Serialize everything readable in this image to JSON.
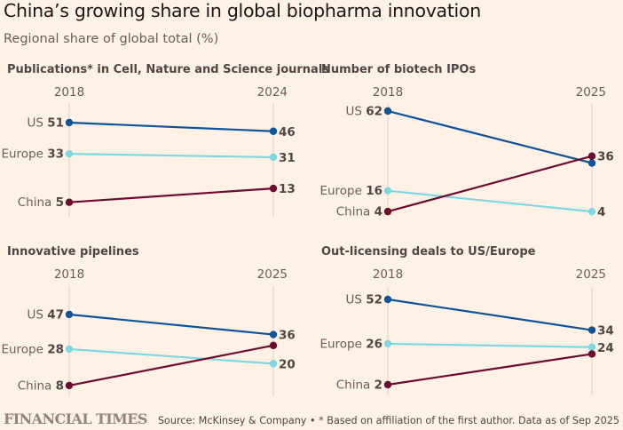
{
  "header": {
    "title": "China’s growing share in global biopharma innovation",
    "subtitle": "Regional share of global total (%)"
  },
  "colors": {
    "background": "#fff1e5",
    "US": "#0f5499",
    "Europe": "#7fd8e0",
    "China": "#6d0b2f",
    "axis": "#e3d9cf"
  },
  "chart_data": [
    {
      "type": "line",
      "subtype": "slope",
      "title": "Publications* in Cell, Nature and Science journals",
      "x": [
        "2018",
        "2024"
      ],
      "series": [
        {
          "name": "US",
          "values": [
            51,
            46
          ],
          "labels": [
            "51",
            "46"
          ]
        },
        {
          "name": "Europe",
          "values": [
            33,
            31
          ],
          "labels": [
            "33",
            "31"
          ]
        },
        {
          "name": "China",
          "values": [
            5,
            13
          ],
          "labels": [
            "5",
            "13"
          ]
        }
      ]
    },
    {
      "type": "line",
      "subtype": "slope",
      "title": "Number of biotech IPOs",
      "x": [
        "2018",
        "2025"
      ],
      "series": [
        {
          "name": "US",
          "values": [
            62,
            32
          ],
          "labels": [
            "62",
            ""
          ]
        },
        {
          "name": "Europe",
          "values": [
            16,
            4
          ],
          "labels": [
            "16",
            "4"
          ]
        },
        {
          "name": "China",
          "values": [
            4,
            36
          ],
          "labels": [
            "4",
            "36"
          ]
        }
      ]
    },
    {
      "type": "line",
      "subtype": "slope",
      "title": "Innovative pipelines",
      "x": [
        "2018",
        "2025"
      ],
      "series": [
        {
          "name": "US",
          "values": [
            47,
            36
          ],
          "labels": [
            "47",
            "36"
          ]
        },
        {
          "name": "Europe",
          "values": [
            28,
            20
          ],
          "labels": [
            "28",
            "20"
          ]
        },
        {
          "name": "China",
          "values": [
            8,
            30
          ],
          "labels": [
            "8",
            ""
          ]
        }
      ]
    },
    {
      "type": "line",
      "subtype": "slope",
      "title": "Out-licensing deals to US/Europe",
      "x": [
        "2018",
        "2025"
      ],
      "series": [
        {
          "name": "US",
          "values": [
            52,
            34
          ],
          "labels": [
            "52",
            "34"
          ]
        },
        {
          "name": "Europe",
          "values": [
            26,
            24
          ],
          "labels": [
            "26",
            "24"
          ]
        },
        {
          "name": "China",
          "values": [
            2,
            20
          ],
          "labels": [
            "2",
            ""
          ]
        }
      ]
    }
  ],
  "footer": {
    "logo": "FINANCIAL TIMES",
    "source": "Source: McKinsey & Company • * Based on affiliation of the first author. Data as of Sep 2025"
  }
}
